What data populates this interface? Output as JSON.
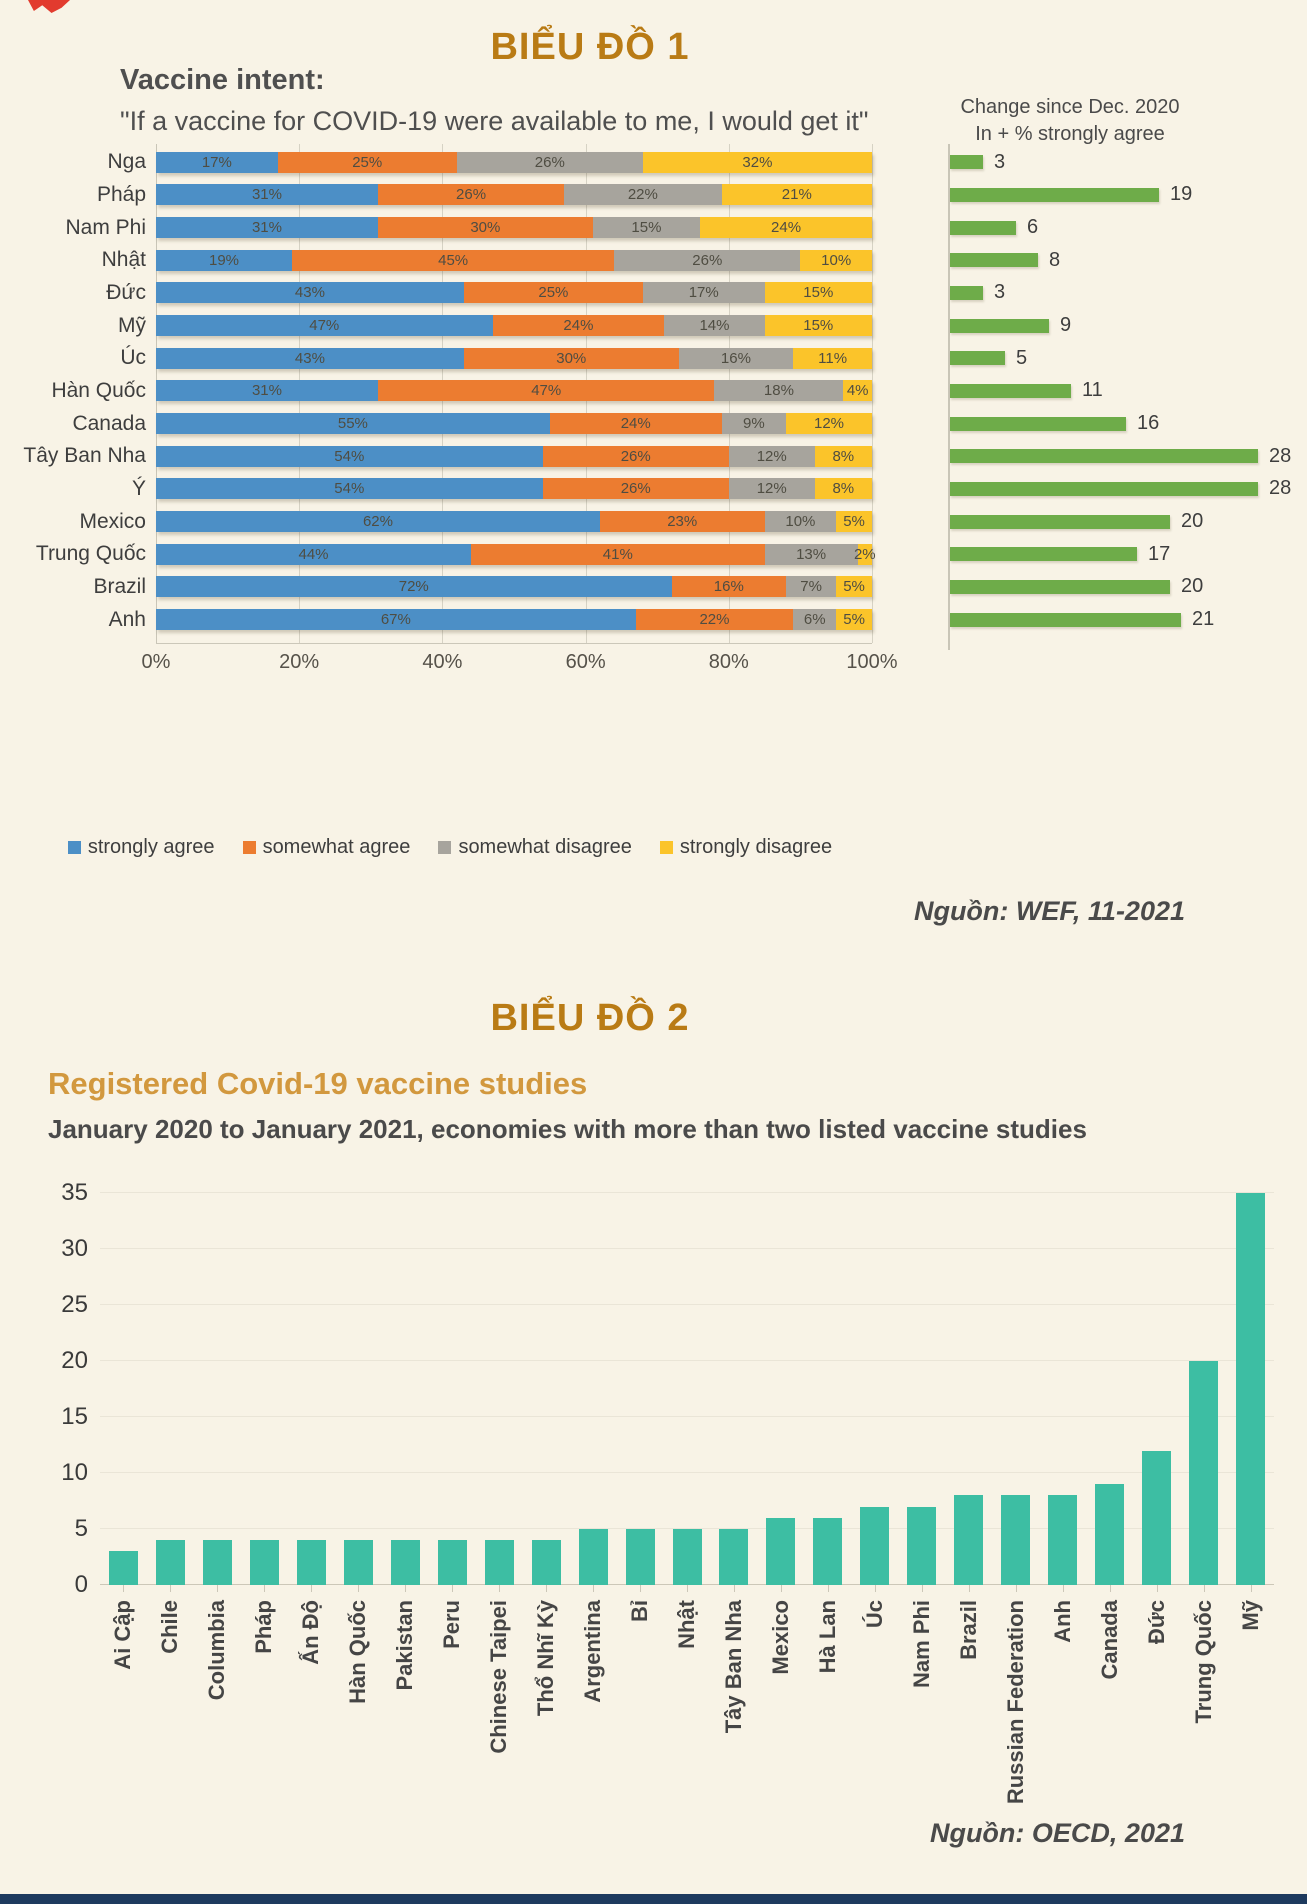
{
  "page": {
    "heading1": "BIỂU ĐỒ 1",
    "heading2": "BIỂU ĐỒ 2",
    "source1": "Nguồn: WEF, 11-2021",
    "source2": "Nguồn: OECD, 2021",
    "background": "#F8F3E6",
    "heading_color": "#B97B15",
    "footer_bar_color": "#1E3A5E",
    "corner_mark_color": "#E23B2E"
  },
  "chart_data": [
    {
      "type": "bar",
      "orientation": "horizontal-stacked",
      "title": "Vaccine intent:",
      "subtitle": "\"If a vaccine for COVID-19 were available to me, I would get it\"",
      "legend_position": "bottom",
      "grid": true,
      "xlim": [
        0,
        100
      ],
      "x_ticks": [
        "0%",
        "20%",
        "40%",
        "60%",
        "80%",
        "100%"
      ],
      "categories": [
        "Nga",
        "Pháp",
        "Nam Phi",
        "Nhật",
        "Đức",
        "Mỹ",
        "Úc",
        "Hàn Quốc",
        "Canada",
        "Tây Ban Nha",
        "Ý",
        "Mexico",
        "Trung Quốc",
        "Brazil",
        "Anh"
      ],
      "series": [
        {
          "name": "strongly agree",
          "color": "#4C8FC6",
          "values": [
            17,
            31,
            31,
            19,
            43,
            47,
            43,
            31,
            55,
            54,
            54,
            62,
            44,
            72,
            67
          ]
        },
        {
          "name": "somewhat agree",
          "color": "#EC7C30",
          "values": [
            25,
            26,
            30,
            45,
            25,
            24,
            30,
            47,
            24,
            26,
            26,
            23,
            41,
            16,
            22
          ]
        },
        {
          "name": "somewhat disagree",
          "color": "#A7A49D",
          "values": [
            26,
            22,
            15,
            26,
            17,
            14,
            16,
            18,
            9,
            12,
            12,
            10,
            13,
            7,
            6
          ]
        },
        {
          "name": "strongly disagree",
          "color": "#FBC42A",
          "values": [
            32,
            21,
            24,
            10,
            15,
            15,
            11,
            4,
            12,
            8,
            8,
            5,
            2,
            5,
            5
          ]
        }
      ],
      "side_chart": {
        "title_line1": "Change since Dec. 2020",
        "title_line2": "In + % strongly agree",
        "color": "#6EAC49",
        "values": [
          3,
          19,
          6,
          8,
          3,
          9,
          5,
          11,
          16,
          28,
          28,
          20,
          17,
          20,
          21
        ],
        "max": 30
      }
    },
    {
      "type": "bar",
      "orientation": "vertical",
      "title": "Registered Covid-19 vaccine studies",
      "subtitle": "January 2020 to January 2021, economies with more than two listed vaccine studies",
      "bar_color": "#3DBEA3",
      "grid": true,
      "ylim": [
        0,
        35
      ],
      "y_ticks": [
        0,
        5,
        10,
        15,
        20,
        25,
        30,
        35
      ],
      "categories": [
        "Ai Cập",
        "Chile",
        "Columbia",
        "Pháp",
        "Ấn Độ",
        "Hàn Quốc",
        "Pakistan",
        "Peru",
        "Chinese Taipei",
        "Thổ Nhĩ Kỳ",
        "Argentina",
        "Bỉ",
        "Nhật",
        "Tây Ban Nha",
        "Mexico",
        "Hà Lan",
        "Úc",
        "Nam Phi",
        "Brazil",
        "Russian Federation",
        "Anh",
        "Canada",
        "Đức",
        "Trung Quốc",
        "Mỹ"
      ],
      "values": [
        3,
        4,
        4,
        4,
        4,
        4,
        4,
        4,
        4,
        4,
        5,
        5,
        5,
        5,
        6,
        6,
        7,
        7,
        8,
        8,
        8,
        9,
        12,
        20,
        35
      ]
    }
  ]
}
